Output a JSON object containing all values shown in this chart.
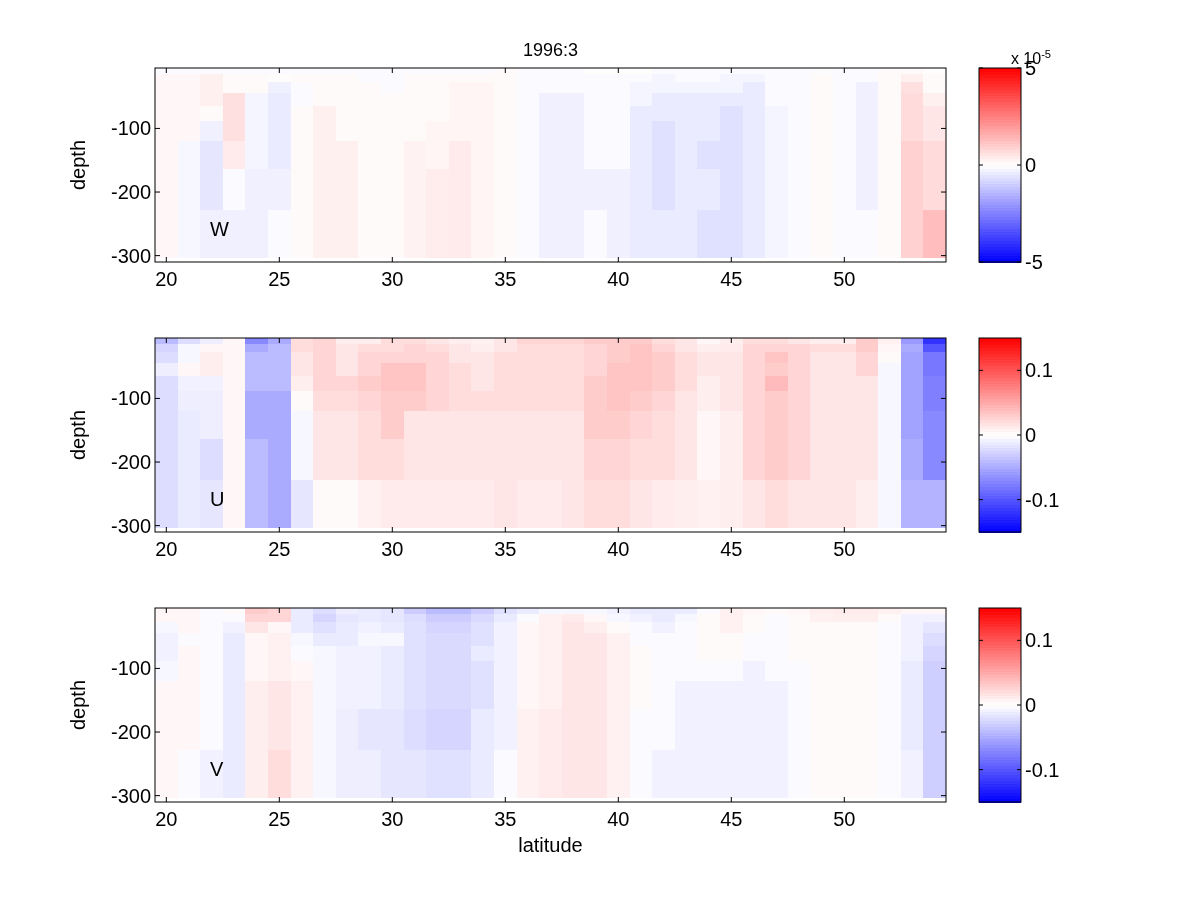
{
  "chart_data": [
    {
      "type": "heatmap",
      "title": "1996:3",
      "ylabel": "depth",
      "clabel": "x 10$^{-5}$",
      "annotations": [
        "W"
      ],
      "x": [
        20,
        21,
        22,
        23,
        24,
        25,
        26,
        27,
        28,
        29,
        30,
        31,
        32,
        33,
        34,
        35,
        36,
        37,
        38,
        39,
        40,
        41,
        42,
        43,
        44,
        45,
        46,
        47,
        48,
        49,
        50,
        51,
        52,
        53,
        54
      ],
      "y": [
        -10,
        -20,
        -35,
        -55,
        -76,
        -102,
        -138,
        -190,
        -266
      ],
      "xlim": [
        19.5,
        54.5
      ],
      "xticks": [
        20,
        25,
        30,
        35,
        40,
        45,
        50
      ],
      "ylim": [
        -310,
        -5
      ],
      "yticks": [
        -300,
        -200,
        -100
      ],
      "clim": [
        -5,
        5
      ],
      "cticks": [
        -5,
        0,
        5
      ],
      "cells": [
        [
          -0.1,
          -0.1,
          -0.1,
          -0.1,
          -0.1,
          -0.1,
          -0.1,
          -0.1,
          -0.1,
          -0.1,
          -0.1,
          -0.1,
          -0.1,
          -0.1,
          -0.1,
          0.1,
          -0.1,
          -0.1,
          -0.1,
          0.05,
          0.05,
          0.05,
          -0.1,
          -0.1,
          -0.1,
          -0.1,
          -0.1,
          -0.1,
          -0.1,
          -0.05,
          -0.1,
          -0.1,
          0.1,
          0.1,
          0.05
        ],
        [
          0.15,
          0.15,
          0.3,
          0.1,
          0.1,
          0.05,
          0.1,
          0.1,
          0.1,
          -0.1,
          -0.1,
          0.1,
          0.1,
          0.1,
          0.1,
          0.1,
          -0.1,
          -0.1,
          -0.1,
          -0.1,
          -0.1,
          -0.1,
          -0.2,
          -0.1,
          -0.1,
          -0.2,
          -0.2,
          -0.1,
          -0.1,
          0.1,
          -0.1,
          -0.1,
          0.1,
          0.3,
          0.1
        ],
        [
          0.15,
          0.15,
          0.3,
          0.1,
          0.1,
          -0.3,
          -0.1,
          0.1,
          0.1,
          0.1,
          -0.1,
          0.1,
          0.1,
          0.2,
          0.2,
          0.1,
          -0.1,
          -0.1,
          -0.1,
          -0.1,
          -0.1,
          -0.2,
          -0.2,
          -0.2,
          -0.2,
          -0.2,
          -0.4,
          -0.1,
          -0.1,
          0.1,
          -0.1,
          -0.3,
          0.1,
          0.6,
          0.1
        ],
        [
          0.15,
          0.15,
          0.3,
          0.6,
          -0.2,
          -0.4,
          -0.1,
          0.1,
          0.1,
          0.1,
          0.1,
          0.1,
          0.1,
          0.2,
          0.2,
          0.1,
          -0.1,
          -0.3,
          -0.3,
          -0.1,
          -0.1,
          -0.2,
          -0.4,
          -0.4,
          -0.4,
          -0.4,
          -0.4,
          -0.1,
          -0.1,
          0.1,
          -0.1,
          -0.3,
          0.1,
          0.7,
          0.3
        ],
        [
          0.15,
          0.15,
          0.1,
          0.6,
          -0.2,
          -0.4,
          0.1,
          0.3,
          0.1,
          0.1,
          0.1,
          0.1,
          0.1,
          0.2,
          0.2,
          0.1,
          -0.1,
          -0.3,
          -0.3,
          -0.1,
          -0.1,
          -0.4,
          -0.4,
          -0.4,
          -0.4,
          -0.6,
          -0.4,
          -0.2,
          -0.1,
          0.1,
          -0.1,
          -0.3,
          0.1,
          0.7,
          0.5
        ],
        [
          0.15,
          0.15,
          -0.3,
          0.6,
          -0.2,
          -0.4,
          0.1,
          0.3,
          0.1,
          0.1,
          0.1,
          0.1,
          0.2,
          0.2,
          0.2,
          0.1,
          -0.1,
          -0.3,
          -0.3,
          -0.1,
          -0.1,
          -0.4,
          -0.6,
          -0.4,
          -0.4,
          -0.6,
          -0.4,
          -0.2,
          -0.1,
          0.1,
          -0.1,
          -0.3,
          0.1,
          0.7,
          0.5
        ],
        [
          0.15,
          -0.15,
          -0.5,
          0.4,
          -0.2,
          -0.4,
          0.1,
          0.3,
          0.3,
          0.1,
          0.1,
          0.25,
          0.2,
          0.4,
          0.2,
          0.1,
          -0.1,
          -0.3,
          -0.3,
          -0.1,
          -0.1,
          -0.4,
          -0.6,
          -0.4,
          -0.6,
          -0.6,
          -0.4,
          -0.2,
          -0.1,
          0.1,
          -0.1,
          -0.3,
          0.1,
          0.9,
          0.7
        ],
        [
          0.15,
          -0.15,
          -0.5,
          -0.1,
          -0.3,
          -0.3,
          0.1,
          0.3,
          0.3,
          0.1,
          0.1,
          0.25,
          0.35,
          0.4,
          0.2,
          0.1,
          -0.1,
          -0.3,
          -0.3,
          -0.3,
          -0.3,
          -0.4,
          -0.6,
          -0.4,
          -0.4,
          -0.6,
          -0.4,
          -0.2,
          -0.1,
          0.1,
          -0.1,
          -0.3,
          0.1,
          0.9,
          0.7
        ],
        [
          0.15,
          -0.15,
          -0.3,
          -0.3,
          -0.3,
          -0.1,
          0.1,
          0.3,
          0.3,
          0.1,
          0.1,
          0.25,
          0.35,
          0.4,
          0.2,
          0.1,
          -0.1,
          -0.3,
          -0.3,
          -0.1,
          -0.3,
          -0.4,
          -0.4,
          -0.4,
          -0.6,
          -0.6,
          -0.4,
          -0.2,
          -0.1,
          0.1,
          -0.1,
          -0.1,
          0.1,
          0.9,
          1.3
        ]
      ]
    },
    {
      "type": "heatmap",
      "ylabel": "depth",
      "annotations": [
        "U"
      ],
      "x": [
        20,
        21,
        22,
        23,
        24,
        25,
        26,
        27,
        28,
        29,
        30,
        31,
        32,
        33,
        34,
        35,
        36,
        37,
        38,
        39,
        40,
        41,
        42,
        43,
        44,
        45,
        46,
        47,
        48,
        49,
        50,
        51,
        52,
        53,
        54
      ],
      "y": [
        -10,
        -20,
        -35,
        -55,
        -76,
        -102,
        -138,
        -190,
        -266
      ],
      "xlim": [
        19.5,
        54.5
      ],
      "xticks": [
        20,
        25,
        30,
        35,
        40,
        45,
        50
      ],
      "ylim": [
        -310,
        -5
      ],
      "yticks": [
        -300,
        -200,
        -100
      ],
      "clim": [
        -0.15,
        0.15
      ],
      "cticks": [
        -0.1,
        0,
        0.1
      ],
      "cells": [
        [
          -0.04,
          -0.02,
          -0.01,
          0.005,
          -0.07,
          -0.05,
          0.02,
          0.025,
          0.01,
          0.01,
          0.02,
          0.02,
          0.015,
          0.01,
          0.008,
          0.015,
          0.025,
          0.025,
          0.025,
          0.03,
          0.03,
          0.03,
          0.02,
          0.015,
          0.005,
          0.01,
          0.02,
          0.02,
          0.015,
          0.01,
          0.01,
          0.03,
          0.008,
          -0.06,
          -0.12
        ],
        [
          -0.025,
          -0.005,
          0.005,
          0.005,
          -0.05,
          -0.04,
          0.02,
          0.025,
          0.015,
          0.02,
          0.02,
          0.025,
          0.02,
          0.015,
          0.01,
          0.015,
          0.02,
          0.02,
          0.02,
          0.025,
          0.03,
          0.035,
          0.025,
          0.015,
          0.01,
          0.012,
          0.025,
          0.025,
          0.025,
          0.02,
          0.02,
          0.03,
          0.005,
          -0.05,
          -0.1
        ],
        [
          -0.02,
          -0.005,
          0.01,
          0.005,
          -0.04,
          -0.04,
          0.015,
          0.025,
          0.015,
          0.025,
          0.025,
          0.025,
          0.025,
          0.015,
          0.015,
          0.02,
          0.02,
          0.02,
          0.02,
          0.025,
          0.03,
          0.035,
          0.03,
          0.02,
          0.015,
          0.015,
          0.025,
          0.035,
          0.025,
          0.015,
          0.015,
          0.025,
          0.003,
          -0.055,
          -0.08
        ],
        [
          -0.01,
          0.005,
          0.01,
          0.005,
          -0.04,
          -0.04,
          0.015,
          0.025,
          0.015,
          0.025,
          0.035,
          0.035,
          0.025,
          0.02,
          0.015,
          0.02,
          0.02,
          0.02,
          0.02,
          0.025,
          0.035,
          0.035,
          0.03,
          0.02,
          0.015,
          0.015,
          0.025,
          0.03,
          0.025,
          0.015,
          0.015,
          0.025,
          -0.005,
          -0.055,
          -0.08
        ],
        [
          -0.02,
          -0.008,
          -0.008,
          0.005,
          -0.04,
          -0.04,
          0.01,
          0.025,
          0.025,
          0.03,
          0.035,
          0.035,
          0.025,
          0.02,
          0.015,
          0.02,
          0.02,
          0.02,
          0.02,
          0.03,
          0.035,
          0.035,
          0.03,
          0.02,
          0.01,
          0.015,
          0.025,
          0.04,
          0.025,
          0.015,
          0.015,
          0.015,
          -0.005,
          -0.055,
          -0.075
        ],
        [
          -0.02,
          -0.01,
          -0.01,
          0.005,
          -0.05,
          -0.05,
          0.003,
          0.02,
          0.02,
          0.025,
          0.03,
          0.03,
          0.025,
          0.02,
          0.02,
          0.02,
          0.02,
          0.02,
          0.02,
          0.03,
          0.035,
          0.03,
          0.025,
          0.015,
          0.01,
          0.015,
          0.025,
          0.03,
          0.025,
          0.015,
          0.015,
          0.015,
          -0.005,
          -0.055,
          -0.075
        ],
        [
          -0.02,
          -0.012,
          -0.01,
          0.005,
          -0.05,
          -0.05,
          -0.005,
          0.015,
          0.015,
          0.02,
          0.03,
          0.015,
          0.015,
          0.015,
          0.015,
          0.015,
          0.015,
          0.015,
          0.015,
          0.03,
          0.03,
          0.025,
          0.02,
          0.015,
          0.005,
          0.01,
          0.025,
          0.03,
          0.025,
          0.015,
          0.015,
          0.015,
          -0.005,
          -0.055,
          -0.07
        ],
        [
          -0.02,
          -0.012,
          -0.02,
          0.005,
          -0.04,
          -0.05,
          -0.005,
          0.015,
          0.015,
          0.02,
          0.02,
          0.015,
          0.015,
          0.015,
          0.015,
          0.015,
          0.015,
          0.015,
          0.015,
          0.025,
          0.025,
          0.02,
          0.02,
          0.015,
          0.005,
          0.01,
          0.025,
          0.03,
          0.025,
          0.015,
          0.015,
          0.015,
          -0.005,
          -0.05,
          -0.07
        ],
        [
          -0.02,
          -0.012,
          -0.015,
          0.005,
          -0.04,
          -0.05,
          -0.015,
          0.003,
          0.003,
          0.008,
          0.012,
          0.012,
          0.012,
          0.012,
          0.012,
          0.015,
          0.012,
          0.012,
          0.015,
          0.02,
          0.02,
          0.015,
          0.012,
          0.01,
          0.008,
          0.01,
          0.015,
          0.02,
          0.015,
          0.015,
          0.015,
          0.01,
          -0.005,
          -0.045,
          -0.045
        ]
      ]
    },
    {
      "type": "heatmap",
      "ylabel": "depth",
      "xlabel": "latitude",
      "annotations": [
        "V"
      ],
      "x": [
        20,
        21,
        22,
        23,
        24,
        25,
        26,
        27,
        28,
        29,
        30,
        31,
        32,
        33,
        34,
        35,
        36,
        37,
        38,
        39,
        40,
        41,
        42,
        43,
        44,
        45,
        46,
        47,
        48,
        49,
        50,
        51,
        52,
        53,
        54
      ],
      "y": [
        -10,
        -20,
        -35,
        -55,
        -76,
        -102,
        -138,
        -190,
        -266
      ],
      "xlim": [
        19.5,
        54.5
      ],
      "xticks": [
        20,
        25,
        30,
        35,
        40,
        45,
        50
      ],
      "ylim": [
        -310,
        -5
      ],
      "yticks": [
        -300,
        -200,
        -100
      ],
      "clim": [
        -0.15,
        0.15
      ],
      "cticks": [
        -0.1,
        0,
        0.1
      ],
      "cells": [
        [
          0.005,
          0.005,
          -0.003,
          0.003,
          0.03,
          0.025,
          -0.012,
          -0.02,
          -0.01,
          -0.012,
          -0.015,
          -0.03,
          -0.04,
          -0.04,
          -0.03,
          -0.018,
          -0.012,
          -0.005,
          -0.005,
          -0.005,
          -0.008,
          -0.012,
          -0.012,
          -0.012,
          -0.003,
          0.008,
          0.005,
          0.003,
          0.005,
          0.01,
          0.012,
          0.012,
          0.008,
          0.005,
          0.005
        ],
        [
          0.005,
          0.005,
          -0.003,
          -0.003,
          0.025,
          0.025,
          -0.012,
          -0.025,
          -0.015,
          -0.012,
          -0.015,
          -0.02,
          -0.03,
          -0.03,
          -0.022,
          -0.012,
          -0.003,
          0.008,
          0.012,
          0.005,
          -0.005,
          -0.008,
          -0.012,
          -0.005,
          0.003,
          0.008,
          0.003,
          -0.003,
          0.003,
          0.008,
          0.01,
          0.01,
          0.003,
          -0.008,
          -0.008
        ],
        [
          -0.005,
          0.005,
          -0.003,
          -0.008,
          0.015,
          0.005,
          -0.012,
          -0.018,
          -0.012,
          -0.008,
          -0.012,
          -0.018,
          -0.025,
          -0.025,
          -0.018,
          -0.008,
          0.005,
          0.008,
          0.015,
          0.01,
          0.003,
          -0.003,
          -0.008,
          -0.003,
          0.003,
          0.008,
          0.003,
          -0.003,
          0.003,
          0.003,
          0.003,
          0.003,
          -0.003,
          -0.008,
          -0.015
        ],
        [
          -0.008,
          -0.003,
          -0.003,
          -0.012,
          0.005,
          0.008,
          -0.005,
          -0.012,
          -0.012,
          -0.005,
          -0.005,
          -0.018,
          -0.022,
          -0.022,
          -0.018,
          -0.008,
          0.005,
          0.008,
          0.015,
          0.015,
          0.008,
          -0.003,
          -0.003,
          -0.003,
          0.003,
          0.003,
          -0.003,
          -0.003,
          0.003,
          0.003,
          0.003,
          0.003,
          -0.003,
          -0.008,
          -0.02
        ],
        [
          -0.008,
          0.005,
          -0.003,
          -0.012,
          0.005,
          0.008,
          -0.003,
          -0.005,
          -0.008,
          -0.008,
          -0.012,
          -0.018,
          -0.022,
          -0.022,
          -0.012,
          -0.008,
          0.005,
          0.008,
          0.015,
          0.015,
          0.008,
          0.003,
          -0.003,
          -0.003,
          0.003,
          0.003,
          -0.003,
          -0.003,
          0.003,
          0.003,
          0.003,
          0.003,
          -0.003,
          -0.008,
          -0.025
        ],
        [
          -0.005,
          0.005,
          -0.003,
          -0.012,
          0.005,
          0.008,
          0.005,
          -0.005,
          -0.008,
          -0.008,
          -0.012,
          -0.018,
          -0.022,
          -0.022,
          -0.018,
          -0.008,
          0.005,
          0.008,
          0.015,
          0.015,
          0.008,
          0.003,
          -0.003,
          -0.003,
          -0.003,
          -0.003,
          -0.008,
          -0.003,
          -0.003,
          0.003,
          0.003,
          0.003,
          -0.003,
          -0.012,
          -0.028
        ],
        [
          0.005,
          0.005,
          -0.003,
          -0.012,
          0.01,
          0.015,
          0.008,
          -0.005,
          -0.008,
          -0.008,
          -0.012,
          -0.018,
          -0.022,
          -0.022,
          -0.018,
          -0.008,
          0.005,
          0.008,
          0.015,
          0.015,
          0.008,
          0.003,
          -0.003,
          -0.008,
          -0.008,
          -0.008,
          -0.008,
          -0.008,
          -0.003,
          0.003,
          0.003,
          0.003,
          -0.003,
          -0.012,
          -0.028
        ],
        [
          0.005,
          0.005,
          -0.003,
          -0.012,
          0.01,
          0.015,
          0.008,
          -0.005,
          -0.01,
          -0.015,
          -0.015,
          -0.02,
          -0.025,
          -0.025,
          -0.012,
          -0.008,
          0.008,
          0.012,
          0.015,
          0.015,
          0.008,
          -0.003,
          -0.003,
          -0.008,
          -0.008,
          -0.008,
          -0.008,
          -0.008,
          -0.003,
          0.003,
          0.003,
          0.003,
          -0.003,
          -0.012,
          -0.028
        ],
        [
          0.005,
          -0.003,
          -0.008,
          -0.012,
          0.01,
          0.02,
          0.008,
          -0.005,
          -0.01,
          -0.01,
          -0.015,
          -0.015,
          -0.018,
          -0.018,
          -0.012,
          -0.003,
          0.008,
          0.012,
          0.015,
          0.015,
          0.008,
          -0.003,
          -0.008,
          -0.008,
          -0.008,
          -0.008,
          -0.008,
          -0.008,
          -0.003,
          0.003,
          0.003,
          0.003,
          -0.003,
          -0.008,
          -0.028
        ]
      ]
    }
  ]
}
